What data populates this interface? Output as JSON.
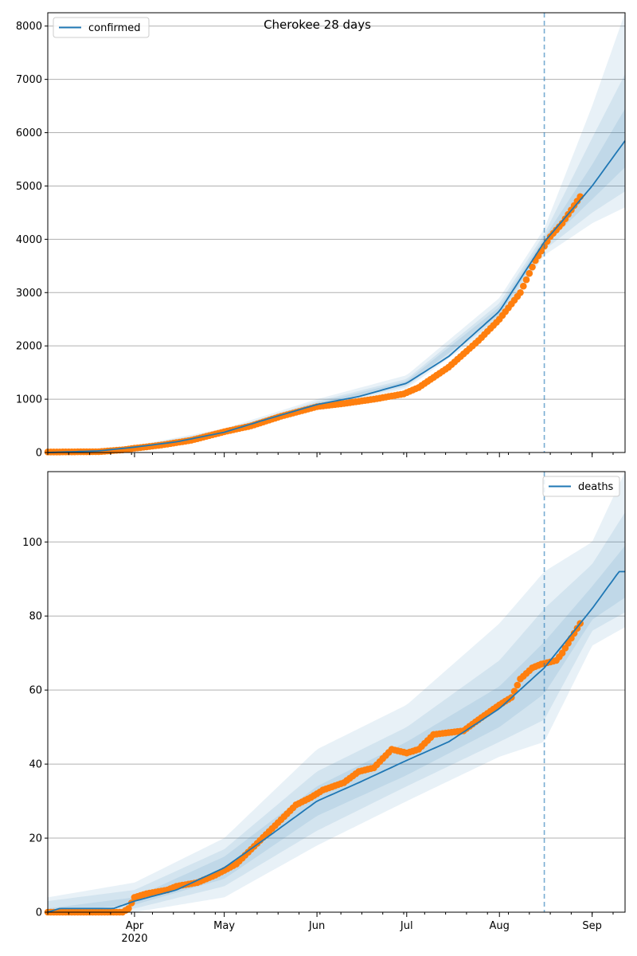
{
  "chart_data": [
    {
      "type": "line",
      "title": "Cherokee 28 days",
      "xlabel": "",
      "ylabel": "",
      "x_range": [
        "2020-03-03",
        "2020-09-12"
      ],
      "ylim": [
        0,
        8250
      ],
      "y_ticks": [
        0,
        1000,
        2000,
        3000,
        4000,
        5000,
        6000,
        7000,
        8000
      ],
      "x_ticks": [
        {
          "date": "2020-04-01",
          "label": "Apr",
          "sublabel": "2020"
        },
        {
          "date": "2020-05-01",
          "label": "May",
          "sublabel": ""
        },
        {
          "date": "2020-06-01",
          "label": "Jun",
          "sublabel": ""
        },
        {
          "date": "2020-07-01",
          "label": "Jul",
          "sublabel": ""
        },
        {
          "date": "2020-08-01",
          "label": "Aug",
          "sublabel": ""
        },
        {
          "date": "2020-09-01",
          "label": "Sep",
          "sublabel": ""
        }
      ],
      "show_x_tick_labels": false,
      "grid": "y",
      "legend": "top-left",
      "forecast_start": "2020-08-16",
      "series": [
        {
          "name": "confirmed",
          "kind": "model-line",
          "color": "#1f77b4",
          "points": [
            [
              "2020-03-03",
              0
            ],
            [
              "2020-03-20",
              30
            ],
            [
              "2020-04-01",
              100
            ],
            [
              "2020-04-15",
              200
            ],
            [
              "2020-05-01",
              380
            ],
            [
              "2020-05-15",
              620
            ],
            [
              "2020-06-01",
              900
            ],
            [
              "2020-06-15",
              1050
            ],
            [
              "2020-07-01",
              1300
            ],
            [
              "2020-07-15",
              1800
            ],
            [
              "2020-08-01",
              2650
            ],
            [
              "2020-08-16",
              3950
            ],
            [
              "2020-09-01",
              5000
            ],
            [
              "2020-09-12",
              5850
            ]
          ]
        },
        {
          "kind": "band",
          "color": "#1f77b4",
          "lower": [
            [
              "2020-03-03",
              0
            ],
            [
              "2020-04-01",
              80
            ],
            [
              "2020-05-01",
              330
            ],
            [
              "2020-06-01",
              820
            ],
            [
              "2020-07-01",
              1200
            ],
            [
              "2020-08-01",
              2450
            ],
            [
              "2020-08-16",
              3700
            ],
            [
              "2020-09-01",
              4300
            ],
            [
              "2020-09-12",
              4600
            ]
          ],
          "upper": [
            [
              "2020-03-03",
              10
            ],
            [
              "2020-04-01",
              130
            ],
            [
              "2020-05-01",
              450
            ],
            [
              "2020-06-01",
              1000
            ],
            [
              "2020-07-01",
              1450
            ],
            [
              "2020-08-01",
              2900
            ],
            [
              "2020-08-16",
              4200
            ],
            [
              "2020-09-01",
              6500
            ],
            [
              "2020-09-12",
              8250
            ]
          ]
        },
        {
          "kind": "band",
          "color": "#1f77b4",
          "lower": [
            [
              "2020-03-03",
              0
            ],
            [
              "2020-04-01",
              90
            ],
            [
              "2020-05-01",
              350
            ],
            [
              "2020-06-01",
              850
            ],
            [
              "2020-07-01",
              1240
            ],
            [
              "2020-08-01",
              2520
            ],
            [
              "2020-08-16",
              3800
            ],
            [
              "2020-09-01",
              4500
            ],
            [
              "2020-09-12",
              4900
            ]
          ],
          "upper": [
            [
              "2020-03-03",
              6
            ],
            [
              "2020-04-01",
              115
            ],
            [
              "2020-05-01",
              420
            ],
            [
              "2020-06-01",
              960
            ],
            [
              "2020-07-01",
              1380
            ],
            [
              "2020-08-01",
              2800
            ],
            [
              "2020-08-16",
              4100
            ],
            [
              "2020-09-01",
              5900
            ],
            [
              "2020-09-12",
              7100
            ]
          ]
        },
        {
          "kind": "band",
          "color": "#1f77b4",
          "lower": [
            [
              "2020-03-03",
              0
            ],
            [
              "2020-04-01",
              95
            ],
            [
              "2020-05-01",
              365
            ],
            [
              "2020-06-01",
              875
            ],
            [
              "2020-07-01",
              1270
            ],
            [
              "2020-08-01",
              2580
            ],
            [
              "2020-08-16",
              3880
            ],
            [
              "2020-09-01",
              4750
            ],
            [
              "2020-09-12",
              5350
            ]
          ],
          "upper": [
            [
              "2020-03-03",
              3
            ],
            [
              "2020-04-01",
              108
            ],
            [
              "2020-05-01",
              400
            ],
            [
              "2020-06-01",
              930
            ],
            [
              "2020-07-01",
              1340
            ],
            [
              "2020-08-01",
              2730
            ],
            [
              "2020-08-16",
              4030
            ],
            [
              "2020-09-01",
              5400
            ],
            [
              "2020-09-12",
              6450
            ]
          ]
        },
        {
          "kind": "observed",
          "color": "#ff7f0e",
          "points": [
            [
              "2020-03-03",
              10
            ],
            [
              "2020-03-20",
              15
            ],
            [
              "2020-03-28",
              50
            ],
            [
              "2020-04-01",
              80
            ],
            [
              "2020-04-10",
              140
            ],
            [
              "2020-04-20",
              230
            ],
            [
              "2020-05-01",
              390
            ],
            [
              "2020-05-10",
              500
            ],
            [
              "2020-05-20",
              680
            ],
            [
              "2020-06-01",
              860
            ],
            [
              "2020-06-10",
              920
            ],
            [
              "2020-06-20",
              1000
            ],
            [
              "2020-06-30",
              1100
            ],
            [
              "2020-07-05",
              1220
            ],
            [
              "2020-07-15",
              1600
            ],
            [
              "2020-07-25",
              2100
            ],
            [
              "2020-08-01",
              2500
            ],
            [
              "2020-08-08",
              3000
            ],
            [
              "2020-08-13",
              3600
            ],
            [
              "2020-08-18",
              4050
            ],
            [
              "2020-08-22",
              4300
            ],
            [
              "2020-08-28",
              4800
            ]
          ]
        }
      ]
    },
    {
      "type": "line",
      "title": "",
      "xlabel": "",
      "ylabel": "",
      "x_range": [
        "2020-03-03",
        "2020-09-12"
      ],
      "ylim": [
        0,
        119
      ],
      "y_ticks": [
        0,
        20,
        40,
        60,
        80,
        100
      ],
      "x_ticks": [
        {
          "date": "2020-04-01",
          "label": "Apr",
          "sublabel": "2020"
        },
        {
          "date": "2020-05-01",
          "label": "May",
          "sublabel": ""
        },
        {
          "date": "2020-06-01",
          "label": "Jun",
          "sublabel": ""
        },
        {
          "date": "2020-07-01",
          "label": "Jul",
          "sublabel": ""
        },
        {
          "date": "2020-08-01",
          "label": "Aug",
          "sublabel": ""
        },
        {
          "date": "2020-09-01",
          "label": "Sep",
          "sublabel": ""
        }
      ],
      "show_x_tick_labels": true,
      "grid": "y",
      "legend": "top-right",
      "forecast_start": "2020-08-16",
      "series": [
        {
          "name": "deaths",
          "kind": "model-line",
          "color": "#1f77b4",
          "points": [
            [
              "2020-03-03",
              0
            ],
            [
              "2020-03-07",
              1
            ],
            [
              "2020-03-25",
              1
            ],
            [
              "2020-04-01",
              3
            ],
            [
              "2020-04-15",
              6
            ],
            [
              "2020-05-01",
              12
            ],
            [
              "2020-05-15",
              20
            ],
            [
              "2020-06-01",
              30
            ],
            [
              "2020-06-15",
              35
            ],
            [
              "2020-07-01",
              41
            ],
            [
              "2020-07-15",
              46
            ],
            [
              "2020-08-01",
              55
            ],
            [
              "2020-08-16",
              66
            ],
            [
              "2020-09-01",
              82
            ],
            [
              "2020-09-10",
              92
            ],
            [
              "2020-09-12",
              92
            ]
          ]
        },
        {
          "kind": "band",
          "color": "#1f77b4",
          "lower": [
            [
              "2020-03-03",
              0
            ],
            [
              "2020-04-01",
              0
            ],
            [
              "2020-05-01",
              4
            ],
            [
              "2020-06-01",
              18
            ],
            [
              "2020-07-01",
              30
            ],
            [
              "2020-08-01",
              42
            ],
            [
              "2020-08-16",
              46
            ],
            [
              "2020-09-01",
              72
            ],
            [
              "2020-09-12",
              77
            ]
          ],
          "upper": [
            [
              "2020-03-03",
              4
            ],
            [
              "2020-04-01",
              8
            ],
            [
              "2020-05-01",
              20
            ],
            [
              "2020-06-01",
              44
            ],
            [
              "2020-07-01",
              56
            ],
            [
              "2020-08-01",
              78
            ],
            [
              "2020-08-16",
              92
            ],
            [
              "2020-09-01",
              100
            ],
            [
              "2020-09-12",
              119
            ]
          ]
        },
        {
          "kind": "band",
          "color": "#1f77b4",
          "lower": [
            [
              "2020-03-03",
              0
            ],
            [
              "2020-04-01",
              1
            ],
            [
              "2020-05-01",
              7
            ],
            [
              "2020-06-01",
              22
            ],
            [
              "2020-07-01",
              34
            ],
            [
              "2020-08-01",
              46
            ],
            [
              "2020-08-16",
              52
            ],
            [
              "2020-09-01",
              76
            ],
            [
              "2020-09-12",
              81
            ]
          ],
          "upper": [
            [
              "2020-03-03",
              3
            ],
            [
              "2020-04-01",
              6
            ],
            [
              "2020-05-01",
              17
            ],
            [
              "2020-06-01",
              38
            ],
            [
              "2020-07-01",
              50
            ],
            [
              "2020-08-01",
              68
            ],
            [
              "2020-08-16",
              82
            ],
            [
              "2020-09-01",
              94
            ],
            [
              "2020-09-12",
              108
            ]
          ]
        },
        {
          "kind": "band",
          "color": "#1f77b4",
          "lower": [
            [
              "2020-03-03",
              0
            ],
            [
              "2020-04-01",
              2
            ],
            [
              "2020-05-01",
              9
            ],
            [
              "2020-06-01",
              26
            ],
            [
              "2020-07-01",
              37
            ],
            [
              "2020-08-01",
              50
            ],
            [
              "2020-08-16",
              59
            ],
            [
              "2020-09-01",
              79
            ],
            [
              "2020-09-12",
              85
            ]
          ],
          "upper": [
            [
              "2020-03-03",
              1
            ],
            [
              "2020-04-01",
              4
            ],
            [
              "2020-05-01",
              15
            ],
            [
              "2020-06-01",
              34
            ],
            [
              "2020-07-01",
              46
            ],
            [
              "2020-08-01",
              61
            ],
            [
              "2020-08-16",
              73
            ],
            [
              "2020-09-01",
              88
            ],
            [
              "2020-09-12",
              99
            ]
          ]
        },
        {
          "kind": "observed",
          "color": "#ff7f0e",
          "points": [
            [
              "2020-03-03",
              0
            ],
            [
              "2020-03-28",
              0
            ],
            [
              "2020-03-30",
              1
            ],
            [
              "2020-04-01",
              4
            ],
            [
              "2020-04-05",
              5
            ],
            [
              "2020-04-12",
              6
            ],
            [
              "2020-04-15",
              7
            ],
            [
              "2020-04-22",
              8
            ],
            [
              "2020-04-28",
              10
            ],
            [
              "2020-05-05",
              13
            ],
            [
              "2020-05-10",
              17
            ],
            [
              "2020-05-15",
              21
            ],
            [
              "2020-05-20",
              25
            ],
            [
              "2020-05-25",
              29
            ],
            [
              "2020-05-30",
              31
            ],
            [
              "2020-06-03",
              33
            ],
            [
              "2020-06-10",
              35
            ],
            [
              "2020-06-15",
              38
            ],
            [
              "2020-06-20",
              39
            ],
            [
              "2020-06-26",
              44
            ],
            [
              "2020-07-01",
              43
            ],
            [
              "2020-07-05",
              44
            ],
            [
              "2020-07-10",
              48
            ],
            [
              "2020-07-20",
              49
            ],
            [
              "2020-07-25",
              52
            ],
            [
              "2020-08-01",
              56
            ],
            [
              "2020-08-05",
              58
            ],
            [
              "2020-08-08",
              63
            ],
            [
              "2020-08-12",
              66
            ],
            [
              "2020-08-15",
              67
            ],
            [
              "2020-08-20",
              68
            ],
            [
              "2020-08-22",
              70
            ],
            [
              "2020-08-25",
              74
            ],
            [
              "2020-08-28",
              78
            ]
          ]
        }
      ]
    }
  ]
}
